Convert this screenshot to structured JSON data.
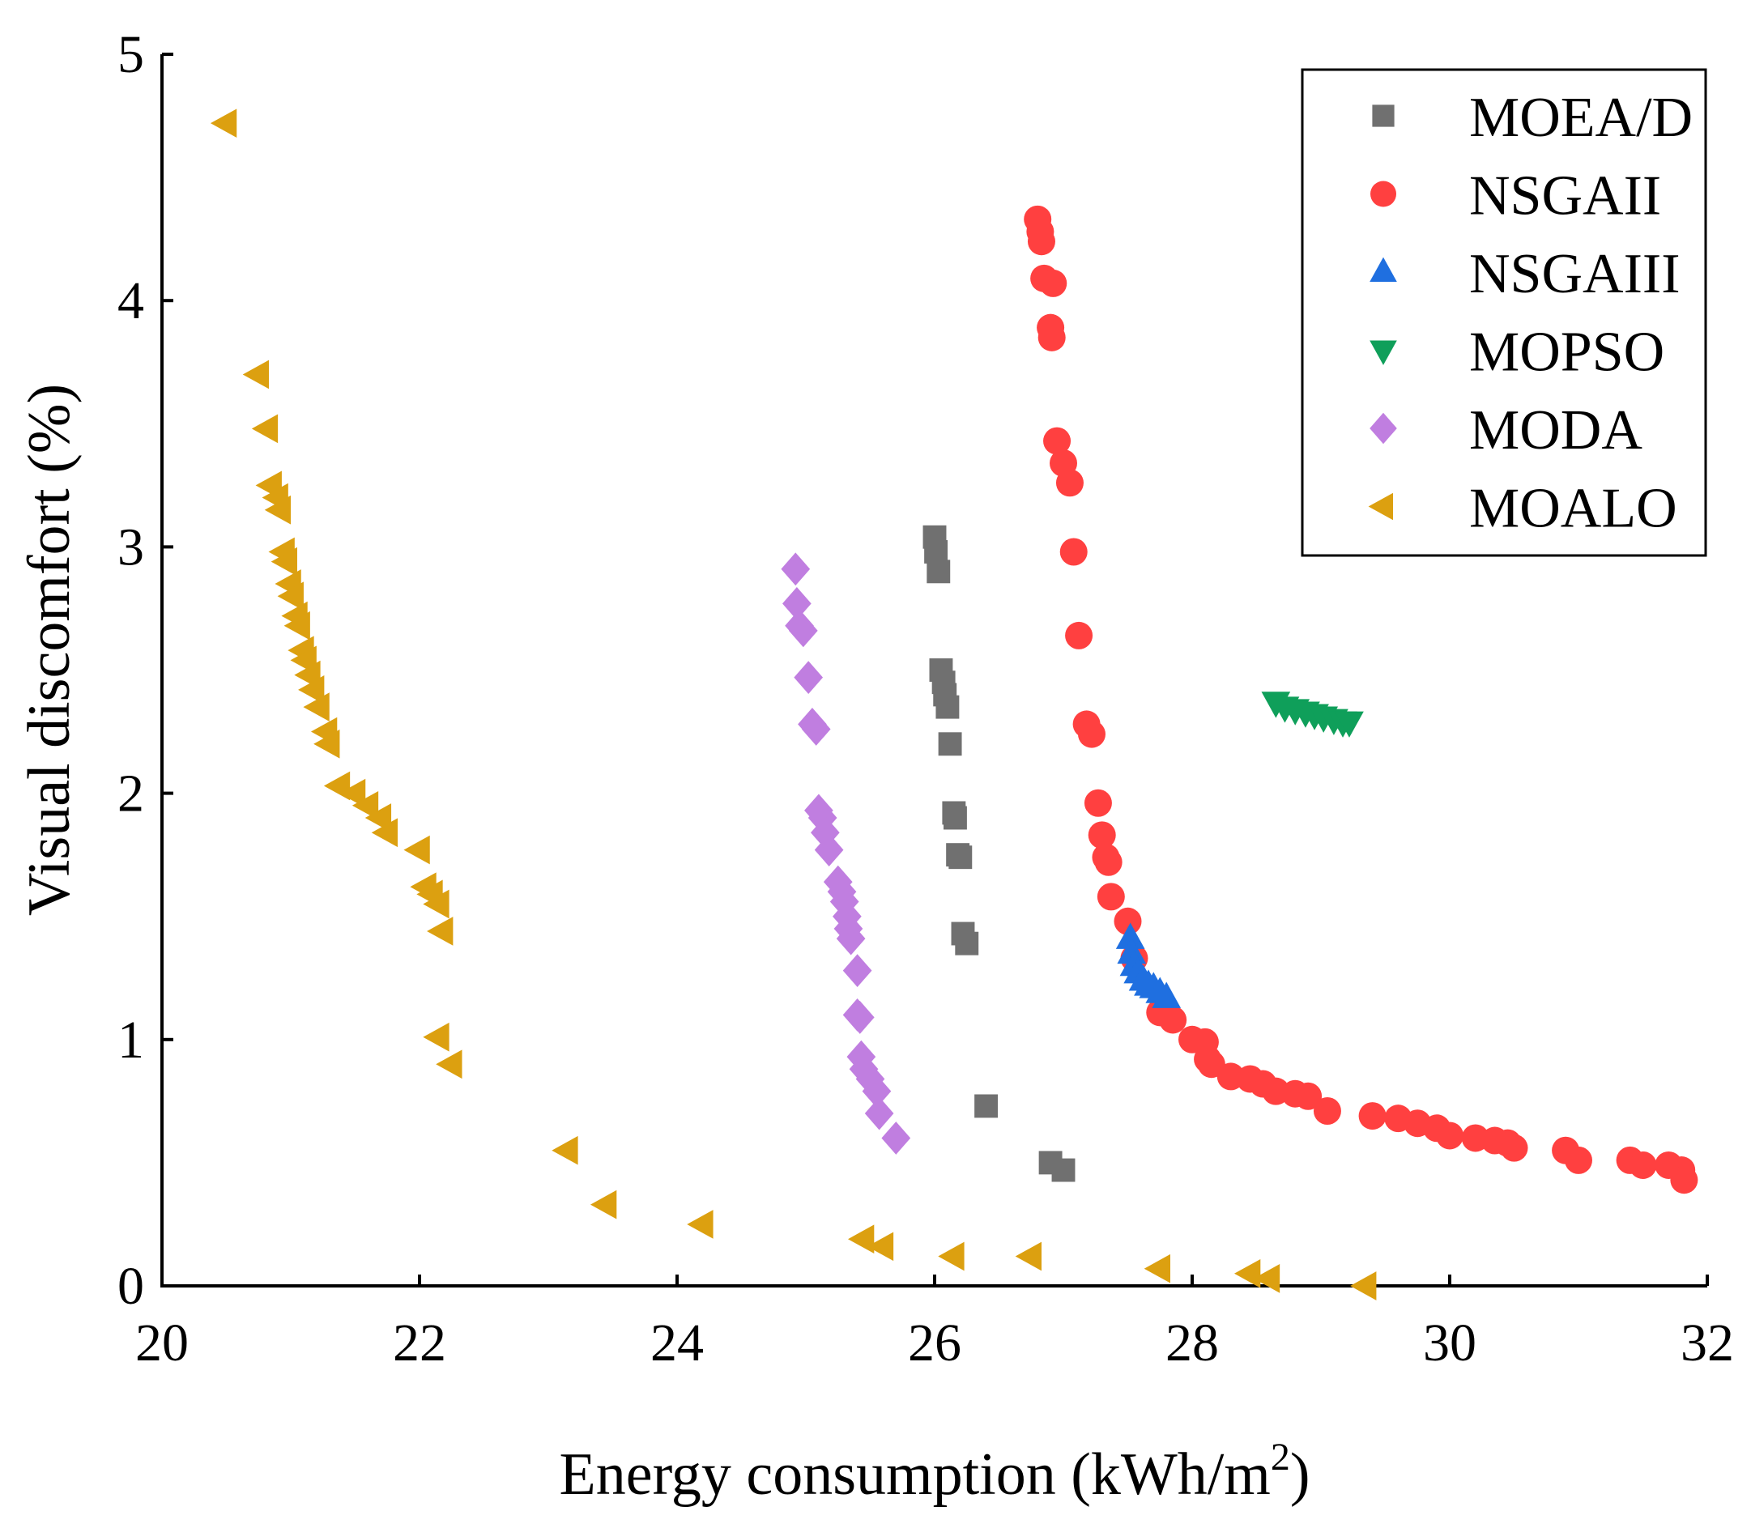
{
  "chart_data": {
    "type": "scatter",
    "title": "",
    "xlabel": "Energy consumption (kWh/m",
    "xlabel_superscript": "2",
    "xlabel_suffix": ")",
    "ylabel": "Visual discomfort (%)",
    "xlim": [
      20,
      32
    ],
    "ylim": [
      0,
      5
    ],
    "x_ticks": [
      20,
      22,
      24,
      26,
      28,
      30,
      32
    ],
    "y_ticks": [
      0,
      1,
      2,
      3,
      4,
      5
    ],
    "x_tick_labels": [
      "20",
      "22",
      "24",
      "26",
      "28",
      "30",
      "32"
    ],
    "y_tick_labels": [
      "0",
      "1",
      "2",
      "3",
      "4",
      "5"
    ],
    "grid": false,
    "legend_position": "top-right",
    "series": [
      {
        "name": "MOEA/D",
        "marker": "square",
        "color": "#707070",
        "points": [
          [
            26.0,
            3.04
          ],
          [
            26.01,
            2.98
          ],
          [
            26.03,
            2.9
          ],
          [
            26.05,
            2.5
          ],
          [
            26.07,
            2.45
          ],
          [
            26.08,
            2.4
          ],
          [
            26.1,
            2.35
          ],
          [
            26.12,
            2.2
          ],
          [
            26.15,
            1.92
          ],
          [
            26.16,
            1.9
          ],
          [
            26.18,
            1.75
          ],
          [
            26.2,
            1.74
          ],
          [
            26.22,
            1.43
          ],
          [
            26.25,
            1.39
          ],
          [
            26.4,
            0.73
          ],
          [
            26.9,
            0.5
          ],
          [
            27.0,
            0.47
          ]
        ]
      },
      {
        "name": "NSGAII",
        "marker": "circle",
        "color": "#ff4040",
        "points": [
          [
            26.8,
            4.33
          ],
          [
            26.82,
            4.28
          ],
          [
            26.83,
            4.24
          ],
          [
            26.85,
            4.09
          ],
          [
            26.92,
            4.07
          ],
          [
            26.9,
            3.89
          ],
          [
            26.91,
            3.85
          ],
          [
            26.95,
            3.43
          ],
          [
            27.0,
            3.34
          ],
          [
            27.05,
            3.26
          ],
          [
            27.08,
            2.98
          ],
          [
            27.12,
            2.64
          ],
          [
            27.18,
            2.28
          ],
          [
            27.22,
            2.24
          ],
          [
            27.27,
            1.96
          ],
          [
            27.3,
            1.83
          ],
          [
            27.33,
            1.74
          ],
          [
            27.35,
            1.72
          ],
          [
            27.37,
            1.58
          ],
          [
            27.5,
            1.48
          ],
          [
            27.55,
            1.33
          ],
          [
            27.75,
            1.11
          ],
          [
            27.85,
            1.08
          ],
          [
            28.0,
            1.0
          ],
          [
            28.1,
            0.99
          ],
          [
            28.12,
            0.92
          ],
          [
            28.15,
            0.9
          ],
          [
            28.3,
            0.85
          ],
          [
            28.45,
            0.84
          ],
          [
            28.55,
            0.82
          ],
          [
            28.65,
            0.79
          ],
          [
            28.8,
            0.78
          ],
          [
            28.9,
            0.77
          ],
          [
            29.05,
            0.71
          ],
          [
            29.4,
            0.69
          ],
          [
            29.6,
            0.68
          ],
          [
            29.75,
            0.66
          ],
          [
            29.9,
            0.64
          ],
          [
            30.0,
            0.61
          ],
          [
            30.2,
            0.6
          ],
          [
            30.35,
            0.59
          ],
          [
            30.45,
            0.58
          ],
          [
            30.5,
            0.56
          ],
          [
            30.9,
            0.55
          ],
          [
            31.0,
            0.51
          ],
          [
            31.4,
            0.51
          ],
          [
            31.5,
            0.49
          ],
          [
            31.7,
            0.49
          ],
          [
            31.8,
            0.47
          ],
          [
            31.82,
            0.43
          ]
        ]
      },
      {
        "name": "NSGAIII",
        "marker": "triangle-up",
        "color": "#1f6fe0",
        "points": [
          [
            27.52,
            1.41
          ],
          [
            27.53,
            1.35
          ],
          [
            27.55,
            1.3
          ],
          [
            27.58,
            1.27
          ],
          [
            27.62,
            1.24
          ],
          [
            27.66,
            1.22
          ],
          [
            27.7,
            1.21
          ],
          [
            27.75,
            1.19
          ],
          [
            27.8,
            1.17
          ]
        ]
      },
      {
        "name": "MOPSO",
        "marker": "triangle-down",
        "color": "#0f9f5a",
        "points": [
          [
            28.65,
            2.37
          ],
          [
            28.72,
            2.35
          ],
          [
            28.8,
            2.34
          ],
          [
            28.88,
            2.33
          ],
          [
            28.95,
            2.32
          ],
          [
            29.02,
            2.31
          ],
          [
            29.1,
            2.3
          ],
          [
            29.17,
            2.29
          ],
          [
            29.22,
            2.29
          ]
        ]
      },
      {
        "name": "MODA",
        "marker": "diamond",
        "color": "#c07ee0",
        "points": [
          [
            24.92,
            2.91
          ],
          [
            24.93,
            2.77
          ],
          [
            24.95,
            2.68
          ],
          [
            24.98,
            2.66
          ],
          [
            25.02,
            2.47
          ],
          [
            25.05,
            2.28
          ],
          [
            25.08,
            2.26
          ],
          [
            25.1,
            1.93
          ],
          [
            25.13,
            1.9
          ],
          [
            25.15,
            1.84
          ],
          [
            25.18,
            1.77
          ],
          [
            25.25,
            1.64
          ],
          [
            25.28,
            1.6
          ],
          [
            25.3,
            1.56
          ],
          [
            25.32,
            1.5
          ],
          [
            25.33,
            1.45
          ],
          [
            25.35,
            1.41
          ],
          [
            25.4,
            1.28
          ],
          [
            25.4,
            1.1
          ],
          [
            25.42,
            1.09
          ],
          [
            25.43,
            0.93
          ],
          [
            25.45,
            0.88
          ],
          [
            25.5,
            0.84
          ],
          [
            25.55,
            0.79
          ],
          [
            25.57,
            0.7
          ],
          [
            25.7,
            0.6
          ]
        ]
      },
      {
        "name": "MOALO",
        "marker": "triangle-left",
        "color": "#dca010",
        "points": [
          [
            20.5,
            4.72
          ],
          [
            20.75,
            3.7
          ],
          [
            20.82,
            3.48
          ],
          [
            20.85,
            3.25
          ],
          [
            20.9,
            3.2
          ],
          [
            20.92,
            3.15
          ],
          [
            20.95,
            2.98
          ],
          [
            20.97,
            2.94
          ],
          [
            21.0,
            2.85
          ],
          [
            21.02,
            2.8
          ],
          [
            21.05,
            2.72
          ],
          [
            21.07,
            2.68
          ],
          [
            21.1,
            2.58
          ],
          [
            21.12,
            2.54
          ],
          [
            21.15,
            2.48
          ],
          [
            21.18,
            2.42
          ],
          [
            21.22,
            2.35
          ],
          [
            21.28,
            2.25
          ],
          [
            21.3,
            2.2
          ],
          [
            21.38,
            2.03
          ],
          [
            21.5,
            2.0
          ],
          [
            21.6,
            1.95
          ],
          [
            21.7,
            1.9
          ],
          [
            21.75,
            1.84
          ],
          [
            22.0,
            1.77
          ],
          [
            22.05,
            1.62
          ],
          [
            22.1,
            1.59
          ],
          [
            22.15,
            1.55
          ],
          [
            22.18,
            1.44
          ],
          [
            22.15,
            1.01
          ],
          [
            22.25,
            0.9
          ],
          [
            23.15,
            0.55
          ],
          [
            23.45,
            0.33
          ],
          [
            24.2,
            0.25
          ],
          [
            25.45,
            0.19
          ],
          [
            25.6,
            0.16
          ],
          [
            26.15,
            0.12
          ],
          [
            26.75,
            0.12
          ],
          [
            27.75,
            0.07
          ],
          [
            28.45,
            0.05
          ],
          [
            28.6,
            0.03
          ],
          [
            29.35,
            0.0
          ]
        ]
      }
    ]
  }
}
